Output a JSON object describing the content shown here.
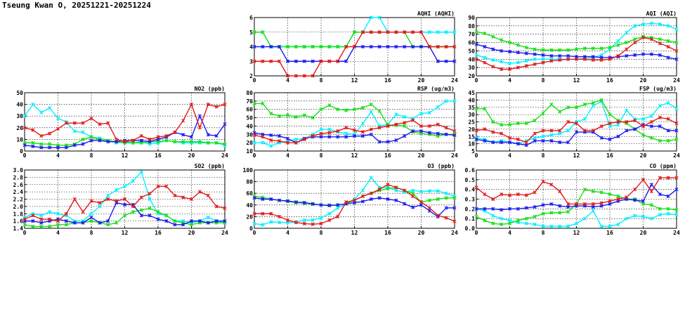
{
  "page": {
    "title": "Tseung Kwan O, 20251221-20251224"
  },
  "colors": {
    "cyan": "#00f0ff",
    "green": "#16e016",
    "blue": "#1a1aee",
    "red": "#e01a1a"
  },
  "chart_data": [
    {
      "id": "aqhi",
      "type": "line",
      "title": "AQHI (AQHI)",
      "xlim": [
        0,
        24
      ],
      "ylim": [
        2,
        6
      ],
      "xticks": [
        0,
        4,
        8,
        12,
        16,
        20,
        24
      ],
      "yticks": [
        2,
        3,
        4,
        5,
        6
      ],
      "series": [
        {
          "color": "cyan",
          "values": [
            5,
            5,
            4,
            4,
            4,
            4,
            4,
            4,
            4,
            4,
            4,
            4,
            5,
            5,
            6,
            6,
            5,
            5,
            5,
            5,
            5,
            5,
            5,
            5,
            5
          ]
        },
        {
          "color": "green",
          "values": [
            5,
            5,
            4,
            4,
            4,
            4,
            4,
            4,
            4,
            4,
            4,
            4,
            5,
            5,
            5,
            5,
            5,
            5,
            5,
            4,
            4,
            4,
            4,
            4,
            4
          ]
        },
        {
          "color": "blue",
          "values": [
            4,
            4,
            4,
            4,
            3,
            3,
            3,
            3,
            3,
            3,
            3,
            3,
            4,
            4,
            4,
            4,
            4,
            4,
            4,
            4,
            4,
            4,
            3,
            3,
            3
          ]
        },
        {
          "color": "red",
          "values": [
            3,
            3,
            3,
            3,
            2,
            2,
            2,
            2,
            3,
            3,
            3,
            4,
            4,
            5,
            5,
            5,
            5,
            5,
            5,
            5,
            5,
            4,
            4,
            4,
            4
          ]
        }
      ]
    },
    {
      "id": "aqi",
      "type": "line",
      "title": "AQI (AQI)",
      "xlim": [
        0,
        24
      ],
      "ylim": [
        20,
        90
      ],
      "xticks": [
        0,
        4,
        8,
        12,
        16,
        20,
        24
      ],
      "yticks": [
        20,
        30,
        40,
        50,
        60,
        70,
        80,
        90
      ],
      "series": [
        {
          "color": "cyan",
          "values": [
            45,
            42,
            39,
            37,
            35,
            36,
            38,
            40,
            40,
            40,
            40,
            40,
            40,
            41,
            42,
            45,
            52,
            62,
            72,
            80,
            82,
            83,
            82,
            80,
            76
          ]
        },
        {
          "color": "green",
          "values": [
            73,
            71,
            67,
            63,
            60,
            57,
            54,
            52,
            51,
            51,
            51,
            51,
            52,
            53,
            53,
            53,
            54,
            57,
            60,
            64,
            67,
            66,
            64,
            62,
            60
          ]
        },
        {
          "color": "blue",
          "values": [
            58,
            55,
            52,
            50,
            49,
            48,
            47,
            46,
            45,
            44,
            44,
            44,
            43,
            43,
            43,
            42,
            42,
            43,
            44,
            45,
            46,
            46,
            45,
            42,
            40
          ]
        },
        {
          "color": "red",
          "values": [
            40,
            36,
            31,
            28,
            28,
            30,
            32,
            34,
            36,
            38,
            39,
            40,
            40,
            40,
            39,
            39,
            40,
            44,
            52,
            60,
            66,
            64,
            59,
            55,
            50
          ]
        }
      ]
    },
    {
      "id": "no2",
      "type": "line",
      "title": "NO2 (ppb)",
      "xlim": [
        0,
        24
      ],
      "ylim": [
        0,
        50
      ],
      "xticks": [
        0,
        4,
        8,
        12,
        16,
        20,
        24
      ],
      "yticks": [
        0,
        10,
        20,
        30,
        40,
        50
      ],
      "series": [
        {
          "color": "cyan",
          "values": [
            30,
            40,
            33,
            37,
            28,
            25,
            17,
            16,
            12,
            11,
            9,
            7,
            8,
            7,
            8,
            6,
            7,
            9,
            8,
            7,
            7,
            7,
            7,
            7,
            5
          ]
        },
        {
          "color": "green",
          "values": [
            7,
            7,
            6,
            6,
            5,
            5,
            6,
            10,
            12,
            10,
            9,
            8,
            7,
            7,
            7,
            8,
            8,
            9,
            8,
            8,
            8,
            8,
            7,
            7,
            6
          ]
        },
        {
          "color": "blue",
          "values": [
            5,
            4,
            3,
            3,
            3,
            3,
            5,
            6,
            9,
            9,
            8,
            8,
            9,
            9,
            9,
            8,
            10,
            12,
            16,
            14,
            12,
            30,
            14,
            13,
            23
          ]
        },
        {
          "color": "red",
          "values": [
            20,
            18,
            13,
            15,
            19,
            24,
            24,
            24,
            28,
            23,
            24,
            10,
            8,
            9,
            13,
            10,
            12,
            13,
            16,
            26,
            40,
            20,
            40,
            38,
            40
          ]
        }
      ]
    },
    {
      "id": "rsp",
      "type": "line",
      "title": "RSP (ug/m3)",
      "xlim": [
        0,
        24
      ],
      "ylim": [
        10,
        80
      ],
      "xticks": [
        0,
        4,
        8,
        12,
        16,
        20,
        24
      ],
      "yticks": [
        10,
        20,
        30,
        40,
        50,
        60,
        70,
        80
      ],
      "series": [
        {
          "color": "cyan",
          "values": [
            20,
            20,
            16,
            20,
            22,
            24,
            25,
            30,
            36,
            36,
            33,
            31,
            30,
            43,
            57,
            40,
            42,
            54,
            51,
            49,
            55,
            56,
            63,
            70,
            70
          ]
        },
        {
          "color": "green",
          "values": [
            67,
            67,
            55,
            52,
            53,
            51,
            53,
            50,
            60,
            65,
            60,
            59,
            60,
            62,
            66,
            58,
            41,
            41,
            40,
            33,
            31,
            30,
            28,
            30,
            30
          ]
        },
        {
          "color": "blue",
          "values": [
            32,
            30,
            29,
            28,
            25,
            20,
            25,
            27,
            27,
            27,
            27,
            27,
            28,
            28,
            30,
            21,
            21,
            23,
            28,
            34,
            34,
            32,
            31,
            30,
            29
          ]
        },
        {
          "color": "red",
          "values": [
            29,
            27,
            23,
            22,
            20,
            20,
            24,
            28,
            31,
            32,
            34,
            38,
            35,
            33,
            36,
            38,
            40,
            42,
            44,
            47,
            40,
            40,
            42,
            38,
            34
          ]
        }
      ]
    },
    {
      "id": "fsp",
      "type": "line",
      "title": "FSP (ug/m3)",
      "xlim": [
        0,
        24
      ],
      "ylim": [
        5,
        45
      ],
      "xticks": [
        0,
        4,
        8,
        12,
        16,
        20,
        24
      ],
      "yticks": [
        5,
        10,
        15,
        20,
        25,
        30,
        35,
        40,
        45
      ],
      "series": [
        {
          "color": "cyan",
          "values": [
            14,
            13,
            11,
            12,
            11,
            10,
            12,
            14,
            15,
            16,
            17,
            19,
            25,
            27,
            36,
            39,
            22,
            23,
            33,
            27,
            27,
            29,
            36,
            38,
            34
          ]
        },
        {
          "color": "green",
          "values": [
            34,
            34,
            25,
            23,
            23,
            24,
            24,
            26,
            31,
            37,
            32,
            35,
            35,
            37,
            38,
            40,
            30,
            26,
            24,
            20,
            16,
            14,
            12,
            12,
            13
          ]
        },
        {
          "color": "blue",
          "values": [
            13,
            12,
            11,
            11,
            11,
            10,
            9,
            12,
            12,
            12,
            11,
            11,
            18,
            18,
            18,
            14,
            13,
            15,
            19,
            20,
            23,
            22,
            22,
            19,
            19
          ]
        },
        {
          "color": "red",
          "values": [
            19,
            20,
            18,
            17,
            14,
            13,
            11,
            17,
            19,
            19,
            19,
            25,
            24,
            19,
            19,
            22,
            24,
            25,
            25,
            26,
            22,
            25,
            28,
            27,
            24
          ]
        }
      ]
    },
    {
      "id": "so2",
      "type": "line",
      "title": "SO2 (ppb)",
      "xlim": [
        0,
        24
      ],
      "ylim": [
        1.4,
        3.0
      ],
      "xticks": [
        0,
        4,
        8,
        12,
        16,
        20,
        24
      ],
      "yticks": [
        1.4,
        1.6,
        1.8,
        2.0,
        2.2,
        2.4,
        2.6,
        2.8,
        3.0
      ],
      "series": [
        {
          "color": "cyan",
          "values": [
            1.7,
            1.8,
            1.75,
            1.85,
            1.8,
            1.75,
            1.6,
            1.6,
            1.8,
            2.0,
            2.3,
            2.45,
            2.55,
            2.7,
            2.95,
            2.2,
            1.8,
            1.75,
            1.6,
            1.6,
            1.55,
            1.6,
            1.7,
            1.6,
            1.55
          ]
        },
        {
          "color": "green",
          "values": [
            1.5,
            1.45,
            1.45,
            1.45,
            1.5,
            1.5,
            1.55,
            1.55,
            1.6,
            1.55,
            1.5,
            1.55,
            1.75,
            1.85,
            1.9,
            1.95,
            1.85,
            1.75,
            1.6,
            1.55,
            1.5,
            1.55,
            1.55,
            1.55,
            1.55
          ]
        },
        {
          "color": "blue",
          "values": [
            1.6,
            1.6,
            1.55,
            1.6,
            1.65,
            1.6,
            1.55,
            1.55,
            1.7,
            1.55,
            1.6,
            2.1,
            2.05,
            2.05,
            1.75,
            1.75,
            1.65,
            1.6,
            1.5,
            1.5,
            1.6,
            1.6,
            1.55,
            1.6,
            1.6
          ]
        },
        {
          "color": "red",
          "values": [
            1.65,
            1.75,
            1.65,
            1.65,
            1.6,
            1.8,
            2.2,
            1.85,
            2.15,
            2.1,
            2.2,
            2.15,
            2.2,
            2.0,
            2.25,
            2.35,
            2.55,
            2.55,
            2.3,
            2.25,
            2.2,
            2.4,
            2.3,
            2.0,
            1.95
          ]
        }
      ]
    },
    {
      "id": "o3",
      "type": "line",
      "title": "O3 (ppb)",
      "xlim": [
        0,
        24
      ],
      "ylim": [
        0,
        100
      ],
      "xticks": [
        0,
        4,
        8,
        12,
        16,
        20,
        24
      ],
      "yticks": [
        0,
        20,
        40,
        60,
        80,
        100
      ],
      "series": [
        {
          "color": "cyan",
          "values": [
            8,
            6,
            11,
            10,
            10,
            11,
            14,
            14,
            18,
            25,
            35,
            42,
            50,
            65,
            87,
            70,
            70,
            65,
            62,
            65,
            63,
            64,
            64,
            60,
            55
          ]
        },
        {
          "color": "green",
          "values": [
            55,
            53,
            50,
            48,
            46,
            44,
            43,
            41,
            40,
            40,
            40,
            42,
            48,
            55,
            60,
            65,
            68,
            70,
            65,
            60,
            45,
            48,
            50,
            52,
            52
          ]
        },
        {
          "color": "blue",
          "values": [
            52,
            50,
            50,
            48,
            47,
            45,
            44,
            42,
            40,
            39,
            40,
            42,
            44,
            46,
            50,
            52,
            50,
            48,
            42,
            36,
            40,
            30,
            20,
            35,
            35
          ]
        },
        {
          "color": "red",
          "values": [
            25,
            25,
            25,
            20,
            14,
            10,
            8,
            7,
            8,
            14,
            20,
            45,
            48,
            55,
            60,
            67,
            75,
            70,
            65,
            55,
            45,
            35,
            22,
            18,
            12
          ]
        }
      ]
    },
    {
      "id": "co",
      "type": "line",
      "title": "CO (ppm)",
      "xlim": [
        0,
        24
      ],
      "ylim": [
        0.0,
        0.6
      ],
      "xticks": [
        0,
        4,
        8,
        12,
        16,
        20,
        24
      ],
      "yticks": [
        0.0,
        0.1,
        0.2,
        0.3,
        0.4,
        0.5,
        0.6
      ],
      "series": [
        {
          "color": "cyan",
          "values": [
            0.2,
            0.18,
            0.13,
            0.1,
            0.08,
            0.06,
            0.05,
            0.04,
            0.02,
            0.02,
            0.02,
            0.02,
            0.05,
            0.1,
            0.18,
            0.02,
            0.02,
            0.04,
            0.1,
            0.13,
            0.12,
            0.1,
            0.14,
            0.15,
            0.14
          ]
        },
        {
          "color": "green",
          "values": [
            0.12,
            0.08,
            0.05,
            0.04,
            0.05,
            0.08,
            0.1,
            0.12,
            0.15,
            0.16,
            0.16,
            0.17,
            0.25,
            0.4,
            0.38,
            0.37,
            0.35,
            0.33,
            0.3,
            0.3,
            0.25,
            0.24,
            0.2,
            0.2,
            0.19
          ]
        },
        {
          "color": "blue",
          "values": [
            0.2,
            0.2,
            0.2,
            0.19,
            0.2,
            0.2,
            0.21,
            0.22,
            0.24,
            0.25,
            0.23,
            0.22,
            0.23,
            0.23,
            0.22,
            0.23,
            0.25,
            0.28,
            0.3,
            0.29,
            0.28,
            0.45,
            0.35,
            0.33,
            0.4
          ]
        },
        {
          "color": "red",
          "values": [
            0.42,
            0.35,
            0.3,
            0.35,
            0.34,
            0.35,
            0.34,
            0.37,
            0.48,
            0.45,
            0.38,
            0.25,
            0.25,
            0.25,
            0.25,
            0.26,
            0.28,
            0.3,
            0.32,
            0.4,
            0.5,
            0.38,
            0.52,
            0.52,
            0.52
          ]
        }
      ]
    }
  ]
}
